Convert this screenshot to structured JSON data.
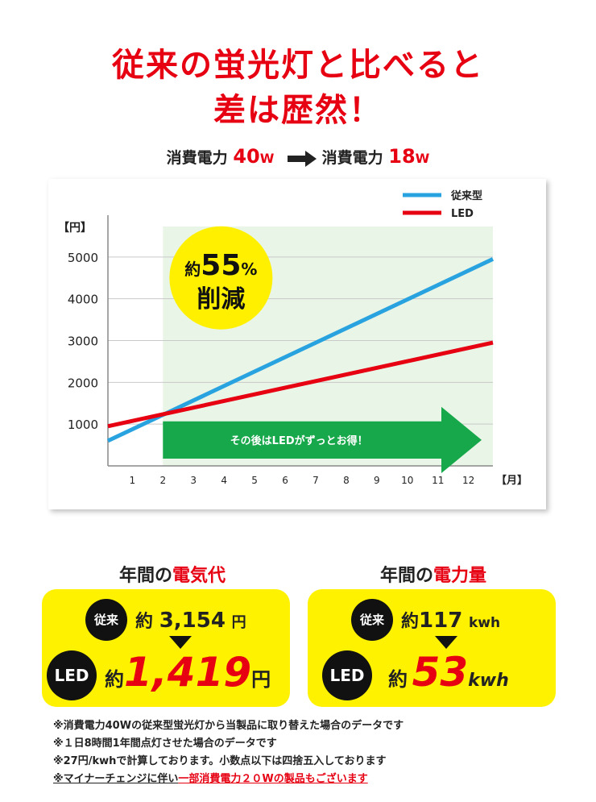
{
  "headline": {
    "line1": "従来の蛍光灯と比べると",
    "line2": "差は歴然！"
  },
  "power": {
    "label_before": "消費電力",
    "value_before": "40",
    "unit_before": "W",
    "label_after": "消費電力",
    "value_after": "18",
    "unit_after": "W"
  },
  "chart_data": {
    "type": "line",
    "y_unit_label": "【円】",
    "x_unit_label": "【月】",
    "x": [
      1,
      2,
      3,
      4,
      5,
      6,
      7,
      8,
      9,
      10,
      11,
      12
    ],
    "xlim": [
      0.2,
      12.8
    ],
    "ylim": [
      0,
      6000
    ],
    "y_ticks": [
      1000,
      2000,
      3000,
      4000,
      5000
    ],
    "grid": true,
    "legend_position": "top-right",
    "highlight_from_x": 2,
    "series": [
      {
        "name": "従来型",
        "color": "#29a3e0",
        "points": [
          [
            0.2,
            600
          ],
          [
            12.8,
            4950
          ]
        ]
      },
      {
        "name": "LED",
        "color": "#e60012",
        "points": [
          [
            0.2,
            950
          ],
          [
            12.8,
            2950
          ]
        ]
      }
    ],
    "callout": {
      "line1_prefix": "約",
      "line1_value": "55",
      "line1_unit": "%",
      "line2": "削減"
    },
    "banner": "その後はLEDがずっとお得！"
  },
  "stats": {
    "cost": {
      "title_prefix": "年間の",
      "title_highlight": "電気代",
      "conv_badge": "従来",
      "conv_prefix": "約",
      "conv_value": "3,154",
      "conv_unit": "円",
      "led_badge": "LED",
      "led_prefix": "約",
      "led_value": "1,419",
      "led_unit": "円"
    },
    "energy": {
      "title_prefix": "年間の",
      "title_highlight": "電力量",
      "conv_badge": "従来",
      "conv_prefix": "約",
      "conv_value": "117",
      "conv_unit": "kwh",
      "led_badge": "LED",
      "led_prefix": "約",
      "led_value": "53",
      "led_unit": "kwh"
    }
  },
  "notes": {
    "line1": "※消費電力40Wの従来型蛍光灯から当製品に取り替えた場合のデータです",
    "line2": "※１日8時間1年間点灯させた場合のデータです",
    "line3": "※27円/kwhで計算しております。小数点以下は四捨五入しております",
    "line4_prefix": "※マイナーチェンジに伴い",
    "line4_red": "一部消費電力２０Wの製品もございます"
  },
  "colors": {
    "accent_red": "#e60012",
    "panel_yellow": "#fff200",
    "callout_yellow": "#fff000",
    "banner_green": "#16a84a",
    "highlight_bg": "#e9f5e6"
  }
}
